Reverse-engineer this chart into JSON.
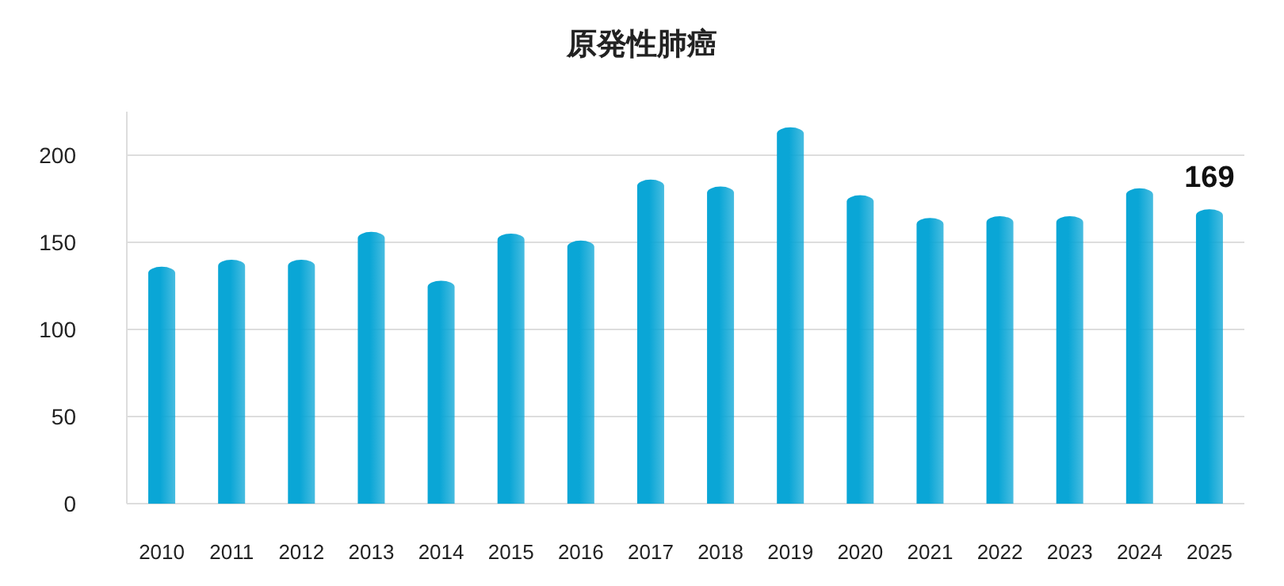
{
  "chart_data": {
    "type": "bar",
    "title": "原発性肺癌",
    "categories": [
      "2010",
      "2011",
      "2012",
      "2013",
      "2014",
      "2015",
      "2016",
      "2017",
      "2018",
      "2019",
      "2020",
      "2021",
      "2022",
      "2023",
      "2024",
      "2025"
    ],
    "values": [
      136,
      140,
      140,
      156,
      128,
      155,
      151,
      186,
      182,
      216,
      177,
      164,
      165,
      165,
      181,
      169
    ],
    "value_labels": [
      null,
      null,
      null,
      null,
      null,
      null,
      null,
      null,
      null,
      null,
      null,
      null,
      null,
      null,
      null,
      "169"
    ],
    "color": "#0aa6d6",
    "ylim": [
      0,
      225
    ],
    "yticks": [
      0,
      50,
      100,
      150,
      200
    ],
    "grid": "y"
  }
}
